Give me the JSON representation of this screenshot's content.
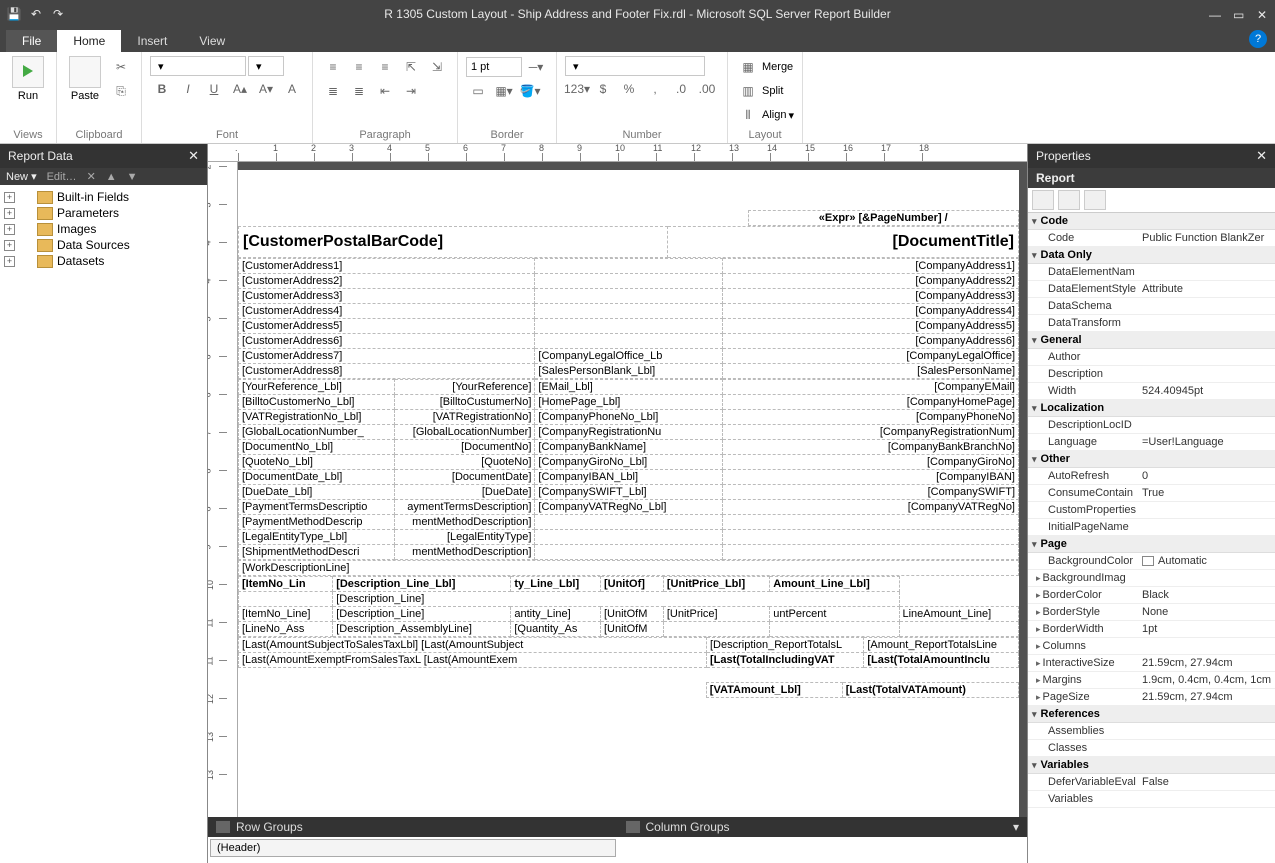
{
  "window": {
    "title": "R 1305 Custom Layout - Ship Address and Footer Fix.rdl - Microsoft SQL Server Report Builder"
  },
  "tabs": {
    "file": "File",
    "home": "Home",
    "insert": "Insert",
    "view": "View"
  },
  "ribbon": {
    "views": {
      "label": "Views",
      "run": "Run"
    },
    "clipboard": {
      "label": "Clipboard",
      "paste": "Paste"
    },
    "font": {
      "label": "Font",
      "bold": "B",
      "italic": "I",
      "underline": "U"
    },
    "paragraph": {
      "label": "Paragraph"
    },
    "border": {
      "label": "Border",
      "width_value": "1 pt"
    },
    "number": {
      "label": "Number"
    },
    "layout": {
      "label": "Layout",
      "merge": "Merge",
      "split": "Split",
      "align": "Align"
    }
  },
  "reportdata": {
    "title": "Report Data",
    "new": "New",
    "edit": "Edit…",
    "nodes": [
      {
        "label": "Built-in Fields"
      },
      {
        "label": "Parameters"
      },
      {
        "label": "Images"
      },
      {
        "label": "Data Sources"
      },
      {
        "label": "Datasets"
      }
    ]
  },
  "ruler_h": [
    ".",
    "1",
    "2",
    "3",
    "4",
    "5",
    "6",
    "7",
    "8",
    "9",
    "10",
    "11",
    "12",
    "13",
    "14",
    "15",
    "16",
    "17",
    "18"
  ],
  "ruler_v": [
    "2",
    "3",
    "4",
    "4",
    "5",
    "6",
    "6",
    "7",
    "8",
    "8",
    "9",
    "10",
    "11",
    "11",
    "12",
    "13",
    "13"
  ],
  "design": {
    "page_expr": "«Expr» [&PageNumber] /",
    "barcode": "[CustomerPostalBarCode]",
    "doctitle": "[DocumentTitle]",
    "cust_addr": [
      "[CustomerAddress1]",
      "[CustomerAddress2]",
      "[CustomerAddress3]",
      "[CustomerAddress4]",
      "[CustomerAddress5]",
      "[CustomerAddress6]",
      "[CustomerAddress7]",
      "[CustomerAddress8]"
    ],
    "mid": [
      "",
      "",
      "",
      "",
      "",
      "",
      "[CompanyLegalOffice_Lb",
      "[SalesPersonBlank_Lbl]"
    ],
    "comp_addr": [
      "[CompanyAddress1]",
      "[CompanyAddress2]",
      "[CompanyAddress3]",
      "[CompanyAddress4]",
      "[CompanyAddress5]",
      "[CompanyAddress6]",
      "[CompanyLegalOffice]",
      "[SalesPersonName]"
    ],
    "info_rows": [
      [
        "[YourReference_Lbl]",
        "[YourReference]",
        "[EMail_Lbl]",
        "[CompanyEMail]"
      ],
      [
        "[BilltoCustomerNo_Lbl]",
        "[BilltoCustumerNo]",
        "[HomePage_Lbl]",
        "[CompanyHomePage]"
      ],
      [
        "[VATRegistrationNo_Lbl]",
        "[VATRegistrationNo]",
        "[CompanyPhoneNo_Lbl]",
        "[CompanyPhoneNo]"
      ],
      [
        "[GlobalLocationNumber_",
        "[GlobalLocationNumber]",
        "[CompanyRegistrationNu",
        "[CompanyRegistrationNum]"
      ],
      [
        "[DocumentNo_Lbl]",
        "[DocumentNo]",
        "[CompanyBankName]",
        "[CompanyBankBranchNo]"
      ],
      [
        "[QuoteNo_Lbl]",
        "[QuoteNo]",
        "[CompanyGiroNo_Lbl]",
        "[CompanyGiroNo]"
      ],
      [
        "[DocumentDate_Lbl]",
        "[DocumentDate]",
        "[CompanyIBAN_Lbl]",
        "[CompanyIBAN]"
      ],
      [
        "[DueDate_Lbl]",
        "[DueDate]",
        "[CompanySWIFT_Lbl]",
        "[CompanySWIFT]"
      ],
      [
        "[PaymentTermsDescriptio",
        "aymentTermsDescription]",
        "[CompanyVATRegNo_Lbl]",
        "[CompanyVATRegNo]"
      ],
      [
        "[PaymentMethodDescrip",
        "mentMethodDescription]",
        "",
        ""
      ],
      [
        "[LegalEntityType_Lbl]",
        "[LegalEntityType]",
        "",
        ""
      ],
      [
        "[ShipmentMethodDescri",
        "mentMethodDescription]",
        "",
        ""
      ]
    ],
    "workdesc": "[WorkDescriptionLine]",
    "line_hdr": [
      "[ItemNo_Lin",
      "[Description_Line_Lbl]",
      "ty_Line_Lbl]",
      "[UnitOf]",
      "[UnitPrice_Lbl]",
      "Amount_Line_Lbl]"
    ],
    "line_sub": "[Description_Line]",
    "line_rows": [
      [
        "[ItemNo_Line]",
        "[Description_Line]",
        "antity_Line]",
        "[UnitOfM",
        "[UnitPrice]",
        "untPercent",
        "LineAmount_Line]"
      ],
      [
        "[LineNo_Ass",
        "[Description_AssemblyLine]",
        "[Quantity_As",
        "[UnitOfM",
        "",
        "",
        ""
      ]
    ],
    "totals": [
      "[Last(AmountSubjectToSalesTaxLbl]   [Last(AmountSubject",
      "[Last(AmountExemptFromSalesTaxL   [Last(AmountExem"
    ],
    "totals_r_hdr": [
      "[Description_ReportTotalsL",
      "[Amount_ReportTotalsLine"
    ],
    "totals_r": [
      "[Last(TotalIncludingVAT",
      "[Last(TotalAmountInclu"
    ],
    "vat": [
      "[VATAmount_Lbl]",
      "[Last(TotalVATAmount)"
    ]
  },
  "groups": {
    "row_title": "Row Groups",
    "row_items": [
      "(Header)"
    ],
    "col_title": "Column Groups"
  },
  "properties": {
    "title": "Properties",
    "object": "Report",
    "cats": [
      {
        "name": "Code",
        "props": [
          {
            "k": "Code",
            "v": "Public Function BlankZer"
          }
        ]
      },
      {
        "name": "Data Only",
        "props": [
          {
            "k": "DataElementNam",
            "v": ""
          },
          {
            "k": "DataElementStyle",
            "v": "Attribute"
          },
          {
            "k": "DataSchema",
            "v": ""
          },
          {
            "k": "DataTransform",
            "v": ""
          }
        ]
      },
      {
        "name": "General",
        "props": [
          {
            "k": "Author",
            "v": ""
          },
          {
            "k": "Description",
            "v": ""
          },
          {
            "k": "Width",
            "v": "524.40945pt"
          }
        ]
      },
      {
        "name": "Localization",
        "props": [
          {
            "k": "DescriptionLocID",
            "v": ""
          },
          {
            "k": "Language",
            "v": "=User!Language"
          }
        ]
      },
      {
        "name": "Other",
        "props": [
          {
            "k": "AutoRefresh",
            "v": "0"
          },
          {
            "k": "ConsumeContain",
            "v": "True"
          },
          {
            "k": "CustomProperties",
            "v": ""
          },
          {
            "k": "InitialPageName",
            "v": ""
          }
        ]
      },
      {
        "name": "Page",
        "props": [
          {
            "k": "BackgroundColor",
            "v": "Automatic",
            "swatch": true
          },
          {
            "k": "BackgroundImag",
            "v": "",
            "exp": true
          },
          {
            "k": "BorderColor",
            "v": "Black",
            "exp": true
          },
          {
            "k": "BorderStyle",
            "v": "None",
            "exp": true
          },
          {
            "k": "BorderWidth",
            "v": "1pt",
            "exp": true
          },
          {
            "k": "Columns",
            "v": "",
            "exp": true
          },
          {
            "k": "InteractiveSize",
            "v": "21.59cm, 27.94cm",
            "exp": true
          },
          {
            "k": "Margins",
            "v": "1.9cm, 0.4cm, 0.4cm, 1cm",
            "exp": true
          },
          {
            "k": "PageSize",
            "v": "21.59cm, 27.94cm",
            "exp": true
          }
        ]
      },
      {
        "name": "References",
        "props": [
          {
            "k": "Assemblies",
            "v": ""
          },
          {
            "k": "Classes",
            "v": ""
          }
        ]
      },
      {
        "name": "Variables",
        "props": [
          {
            "k": "DeferVariableEval",
            "v": "False"
          },
          {
            "k": "Variables",
            "v": ""
          }
        ]
      }
    ]
  }
}
